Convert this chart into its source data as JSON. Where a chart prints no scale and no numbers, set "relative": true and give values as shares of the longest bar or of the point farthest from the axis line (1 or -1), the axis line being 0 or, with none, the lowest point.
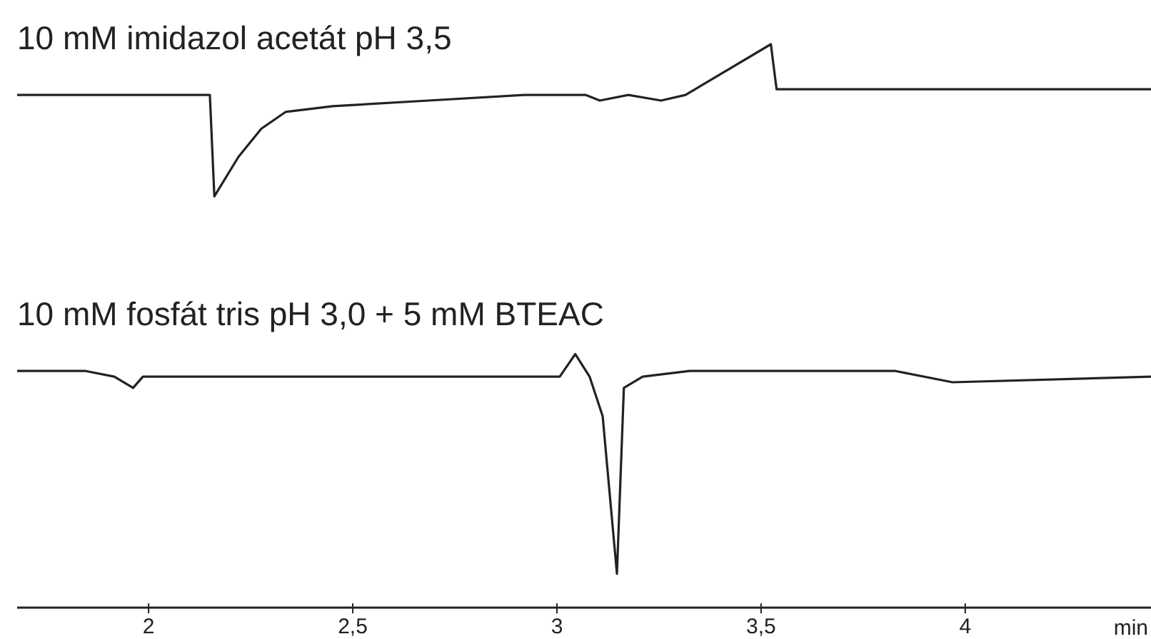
{
  "chart_data": {
    "type": "line",
    "relative": true,
    "xlabel": "min",
    "xlim": [
      1.678,
      4.455
    ],
    "xticks": [
      2,
      {
        "value": 2.5,
        "label": "2,5"
      },
      3,
      {
        "value": 3.5,
        "label": "3,5"
      },
      4
    ],
    "tick_labels": "x",
    "marker": "none",
    "line_style": "solid",
    "series": [
      {
        "name": "10 mM imidazol acetát pH 3,5",
        "color": "#222222",
        "x": [
          1.678,
          2.15,
          2.161,
          2.22,
          2.276,
          2.336,
          2.451,
          2.685,
          2.92,
          3.035,
          3.07,
          3.105,
          3.175,
          3.255,
          3.315,
          3.524,
          3.538,
          4.084,
          4.171,
          4.399,
          4.455
        ],
        "values": [
          0.91,
          0.91,
          0.73,
          0.8,
          0.85,
          0.88,
          0.89,
          0.9,
          0.91,
          0.91,
          0.91,
          0.9,
          0.91,
          0.9,
          0.91,
          1,
          0.92,
          0.92,
          0.92,
          0.92,
          0.92
        ]
      },
      {
        "name": "10 mM fosfát tris pH 3,0 + 5 mM BTEAC",
        "color": "#222222",
        "x": [
          1.678,
          1.846,
          1.916,
          1.962,
          1.986,
          3.007,
          3.045,
          3.08,
          3.112,
          3.147,
          3.164,
          3.21,
          3.325,
          3.829,
          3.969,
          4.455
        ],
        "values": [
          0.42,
          0.42,
          0.41,
          0.39,
          0.41,
          0.41,
          0.45,
          0.41,
          0.34,
          0.06,
          0.39,
          0.41,
          0.42,
          0.42,
          0.4,
          0.41
        ]
      }
    ]
  }
}
